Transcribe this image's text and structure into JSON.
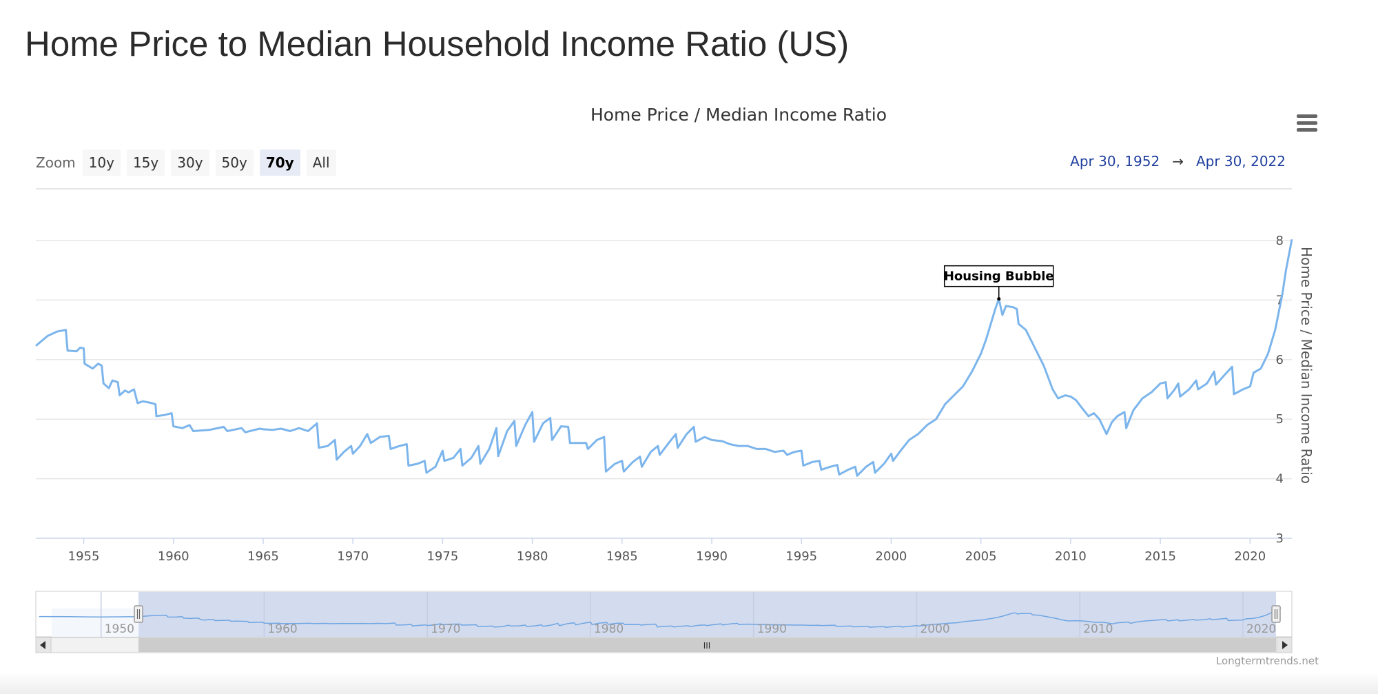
{
  "page": {
    "title": "Home Price to Median Household Income Ratio (US)"
  },
  "chart_data": {
    "type": "line",
    "title": "Home Price / Median Income Ratio",
    "ylabel": "Home Price / Median Income Ratio",
    "xlabel": "",
    "xlim": [
      1952.33,
      2022.33
    ],
    "ylim": [
      3,
      8
    ],
    "x_ticks": [
      "1955",
      "1960",
      "1965",
      "1970",
      "1975",
      "1980",
      "1985",
      "1990",
      "1995",
      "2000",
      "2005",
      "2010",
      "2015",
      "2020"
    ],
    "y_ticks": [
      "3",
      "4",
      "5",
      "6",
      "7",
      "8"
    ],
    "grid": true,
    "line_color": "#7cb5ec",
    "series": [
      {
        "name": "",
        "points": [
          [
            1952.33,
            6.23
          ],
          [
            1953.0,
            6.4
          ],
          [
            1953.5,
            6.47
          ],
          [
            1954.0,
            6.5
          ],
          [
            1954.1,
            6.15
          ],
          [
            1954.6,
            6.14
          ],
          [
            1954.8,
            6.2
          ],
          [
            1955.0,
            6.19
          ],
          [
            1955.05,
            5.93
          ],
          [
            1955.5,
            5.85
          ],
          [
            1955.8,
            5.93
          ],
          [
            1956.0,
            5.9
          ],
          [
            1956.1,
            5.6
          ],
          [
            1956.4,
            5.52
          ],
          [
            1956.6,
            5.65
          ],
          [
            1956.9,
            5.62
          ],
          [
            1957.0,
            5.4
          ],
          [
            1957.3,
            5.48
          ],
          [
            1957.5,
            5.45
          ],
          [
            1957.8,
            5.5
          ],
          [
            1958.0,
            5.27
          ],
          [
            1958.3,
            5.3
          ],
          [
            1958.8,
            5.27
          ],
          [
            1959.0,
            5.25
          ],
          [
            1959.05,
            5.05
          ],
          [
            1959.5,
            5.07
          ],
          [
            1959.9,
            5.1
          ],
          [
            1960.0,
            4.88
          ],
          [
            1960.5,
            4.85
          ],
          [
            1960.9,
            4.9
          ],
          [
            1961.1,
            4.8
          ],
          [
            1962.0,
            4.82
          ],
          [
            1962.8,
            4.87
          ],
          [
            1963.0,
            4.8
          ],
          [
            1963.8,
            4.85
          ],
          [
            1964.0,
            4.78
          ],
          [
            1964.8,
            4.84
          ],
          [
            1965.0,
            4.83
          ],
          [
            1965.5,
            4.82
          ],
          [
            1966.0,
            4.84
          ],
          [
            1966.5,
            4.8
          ],
          [
            1967.0,
            4.85
          ],
          [
            1967.5,
            4.8
          ],
          [
            1968.0,
            4.93
          ],
          [
            1968.1,
            4.52
          ],
          [
            1968.6,
            4.55
          ],
          [
            1969.0,
            4.65
          ],
          [
            1969.1,
            4.32
          ],
          [
            1969.5,
            4.45
          ],
          [
            1969.9,
            4.55
          ],
          [
            1970.0,
            4.42
          ],
          [
            1970.4,
            4.55
          ],
          [
            1970.8,
            4.75
          ],
          [
            1971.0,
            4.6
          ],
          [
            1971.5,
            4.7
          ],
          [
            1972.0,
            4.72
          ],
          [
            1972.1,
            4.5
          ],
          [
            1972.6,
            4.55
          ],
          [
            1973.0,
            4.58
          ],
          [
            1973.1,
            4.22
          ],
          [
            1973.6,
            4.25
          ],
          [
            1974.0,
            4.3
          ],
          [
            1974.1,
            4.1
          ],
          [
            1974.6,
            4.2
          ],
          [
            1975.0,
            4.47
          ],
          [
            1975.1,
            4.3
          ],
          [
            1975.6,
            4.35
          ],
          [
            1976.0,
            4.5
          ],
          [
            1976.1,
            4.22
          ],
          [
            1976.6,
            4.35
          ],
          [
            1977.0,
            4.55
          ],
          [
            1977.1,
            4.25
          ],
          [
            1977.6,
            4.5
          ],
          [
            1978.0,
            4.85
          ],
          [
            1978.1,
            4.38
          ],
          [
            1978.6,
            4.8
          ],
          [
            1979.0,
            4.97
          ],
          [
            1979.1,
            4.55
          ],
          [
            1979.6,
            4.9
          ],
          [
            1980.0,
            5.12
          ],
          [
            1980.1,
            4.62
          ],
          [
            1980.6,
            4.93
          ],
          [
            1981.0,
            5.02
          ],
          [
            1981.1,
            4.65
          ],
          [
            1981.6,
            4.88
          ],
          [
            1982.0,
            4.87
          ],
          [
            1982.1,
            4.6
          ],
          [
            1983.0,
            4.6
          ],
          [
            1983.1,
            4.5
          ],
          [
            1983.6,
            4.65
          ],
          [
            1984.0,
            4.7
          ],
          [
            1984.1,
            4.12
          ],
          [
            1984.6,
            4.25
          ],
          [
            1985.0,
            4.3
          ],
          [
            1985.1,
            4.12
          ],
          [
            1985.6,
            4.28
          ],
          [
            1986.0,
            4.37
          ],
          [
            1986.1,
            4.2
          ],
          [
            1986.6,
            4.45
          ],
          [
            1987.0,
            4.55
          ],
          [
            1987.1,
            4.4
          ],
          [
            1987.6,
            4.6
          ],
          [
            1988.0,
            4.75
          ],
          [
            1988.1,
            4.52
          ],
          [
            1988.6,
            4.75
          ],
          [
            1989.0,
            4.87
          ],
          [
            1989.1,
            4.62
          ],
          [
            1989.6,
            4.7
          ],
          [
            1990.0,
            4.65
          ],
          [
            1990.6,
            4.63
          ],
          [
            1991.0,
            4.58
          ],
          [
            1991.5,
            4.55
          ],
          [
            1992.0,
            4.55
          ],
          [
            1992.5,
            4.5
          ],
          [
            1993.0,
            4.5
          ],
          [
            1993.5,
            4.45
          ],
          [
            1994.0,
            4.47
          ],
          [
            1994.2,
            4.4
          ],
          [
            1994.6,
            4.45
          ],
          [
            1995.0,
            4.47
          ],
          [
            1995.1,
            4.22
          ],
          [
            1995.6,
            4.28
          ],
          [
            1996.0,
            4.3
          ],
          [
            1996.1,
            4.15
          ],
          [
            1996.6,
            4.2
          ],
          [
            1997.0,
            4.23
          ],
          [
            1997.1,
            4.07
          ],
          [
            1997.6,
            4.15
          ],
          [
            1998.0,
            4.2
          ],
          [
            1998.1,
            4.05
          ],
          [
            1998.6,
            4.2
          ],
          [
            1999.0,
            4.28
          ],
          [
            1999.1,
            4.1
          ],
          [
            1999.6,
            4.25
          ],
          [
            2000.0,
            4.42
          ],
          [
            2000.1,
            4.3
          ],
          [
            2000.6,
            4.5
          ],
          [
            2001.0,
            4.65
          ],
          [
            2001.5,
            4.75
          ],
          [
            2002.0,
            4.9
          ],
          [
            2002.5,
            5.0
          ],
          [
            2003.0,
            5.25
          ],
          [
            2003.5,
            5.4
          ],
          [
            2004.0,
            5.55
          ],
          [
            2004.5,
            5.8
          ],
          [
            2005.0,
            6.1
          ],
          [
            2005.3,
            6.35
          ],
          [
            2005.5,
            6.55
          ],
          [
            2005.8,
            6.85
          ],
          [
            2006.0,
            7.02
          ],
          [
            2006.2,
            6.75
          ],
          [
            2006.4,
            6.9
          ],
          [
            2006.8,
            6.88
          ],
          [
            2007.0,
            6.85
          ],
          [
            2007.1,
            6.6
          ],
          [
            2007.5,
            6.5
          ],
          [
            2008.0,
            6.2
          ],
          [
            2008.5,
            5.9
          ],
          [
            2009.0,
            5.5
          ],
          [
            2009.3,
            5.35
          ],
          [
            2009.7,
            5.4
          ],
          [
            2010.0,
            5.38
          ],
          [
            2010.3,
            5.32
          ],
          [
            2010.6,
            5.2
          ],
          [
            2011.0,
            5.05
          ],
          [
            2011.3,
            5.1
          ],
          [
            2011.6,
            5.0
          ],
          [
            2012.0,
            4.75
          ],
          [
            2012.3,
            4.95
          ],
          [
            2012.6,
            5.05
          ],
          [
            2013.0,
            5.12
          ],
          [
            2013.1,
            4.85
          ],
          [
            2013.5,
            5.15
          ],
          [
            2014.0,
            5.35
          ],
          [
            2014.5,
            5.45
          ],
          [
            2015.0,
            5.6
          ],
          [
            2015.3,
            5.62
          ],
          [
            2015.4,
            5.35
          ],
          [
            2015.8,
            5.5
          ],
          [
            2016.0,
            5.6
          ],
          [
            2016.1,
            5.38
          ],
          [
            2016.6,
            5.5
          ],
          [
            2017.0,
            5.65
          ],
          [
            2017.1,
            5.5
          ],
          [
            2017.6,
            5.6
          ],
          [
            2018.0,
            5.8
          ],
          [
            2018.1,
            5.58
          ],
          [
            2018.6,
            5.75
          ],
          [
            2019.0,
            5.88
          ],
          [
            2019.1,
            5.42
          ],
          [
            2019.6,
            5.5
          ],
          [
            2020.0,
            5.55
          ],
          [
            2020.2,
            5.78
          ],
          [
            2020.6,
            5.85
          ],
          [
            2021.0,
            6.1
          ],
          [
            2021.4,
            6.5
          ],
          [
            2021.8,
            7.1
          ],
          [
            2022.0,
            7.5
          ],
          [
            2022.33,
            8.02
          ]
        ]
      }
    ],
    "annotations": [
      {
        "text": "Housing Bubble",
        "x": 2006.0,
        "y": 7.02
      }
    ]
  },
  "controls": {
    "zoom_label": "Zoom",
    "zoom_buttons": [
      "10y",
      "15y",
      "30y",
      "50y",
      "70y",
      "All"
    ],
    "active_zoom": "70y",
    "range_from": "Apr 30, 1952",
    "range_arrow": "→",
    "range_to": "Apr 30, 2022"
  },
  "navigator": {
    "tick_labels": [
      "1950",
      "1960",
      "1970",
      "1980",
      "1990",
      "2000",
      "2010",
      "2020"
    ],
    "xlim": [
      1946,
      2023
    ],
    "scrollbar_grip": "III"
  },
  "credits": "Longtermtrends.net",
  "icons": {
    "menu": "hamburger-menu-icon"
  }
}
